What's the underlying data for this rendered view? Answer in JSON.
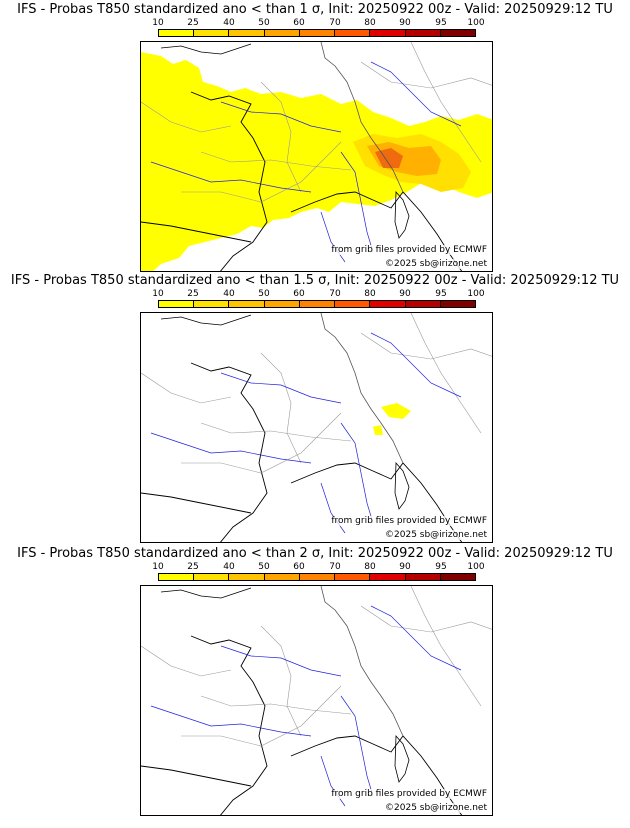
{
  "colorbar": {
    "labels": [
      "10",
      "25",
      "40",
      "50",
      "60",
      "70",
      "80",
      "90",
      "95",
      "100"
    ],
    "colors": [
      "#ffff00",
      "#ffe300",
      "#ffc400",
      "#ffa500",
      "#ff8200",
      "#ff5a00",
      "#e00000",
      "#b40000",
      "#800000"
    ]
  },
  "credits": {
    "ecmwf": "from grib files provided by ECMWF",
    "copyright": "©2025 sb@irizone.net"
  },
  "colors": {
    "coast": "#000000",
    "borders": "#666666",
    "regions": "#9a9a9a",
    "rivers": "#2222dd",
    "prob_low": "#ffff00",
    "prob_mid": "#ffb000",
    "prob_high": "#f06a10"
  },
  "panels": [
    {
      "id": "p1",
      "title": "IFS - Probas T850  standardized ano < than 1 σ, Init: 20250922 00z - Valid: 20250929:12 TU"
    },
    {
      "id": "p2",
      "title": "IFS - Probas T850  standardized ano < than 1.5 σ, Init: 20250922 00z - Valid: 20250929:12 TU"
    },
    {
      "id": "p3",
      "title": "IFS - Probas T850  standardized ano < than 2 σ, Init: 20250922 00z - Valid: 20250929:12 TU"
    }
  ]
}
